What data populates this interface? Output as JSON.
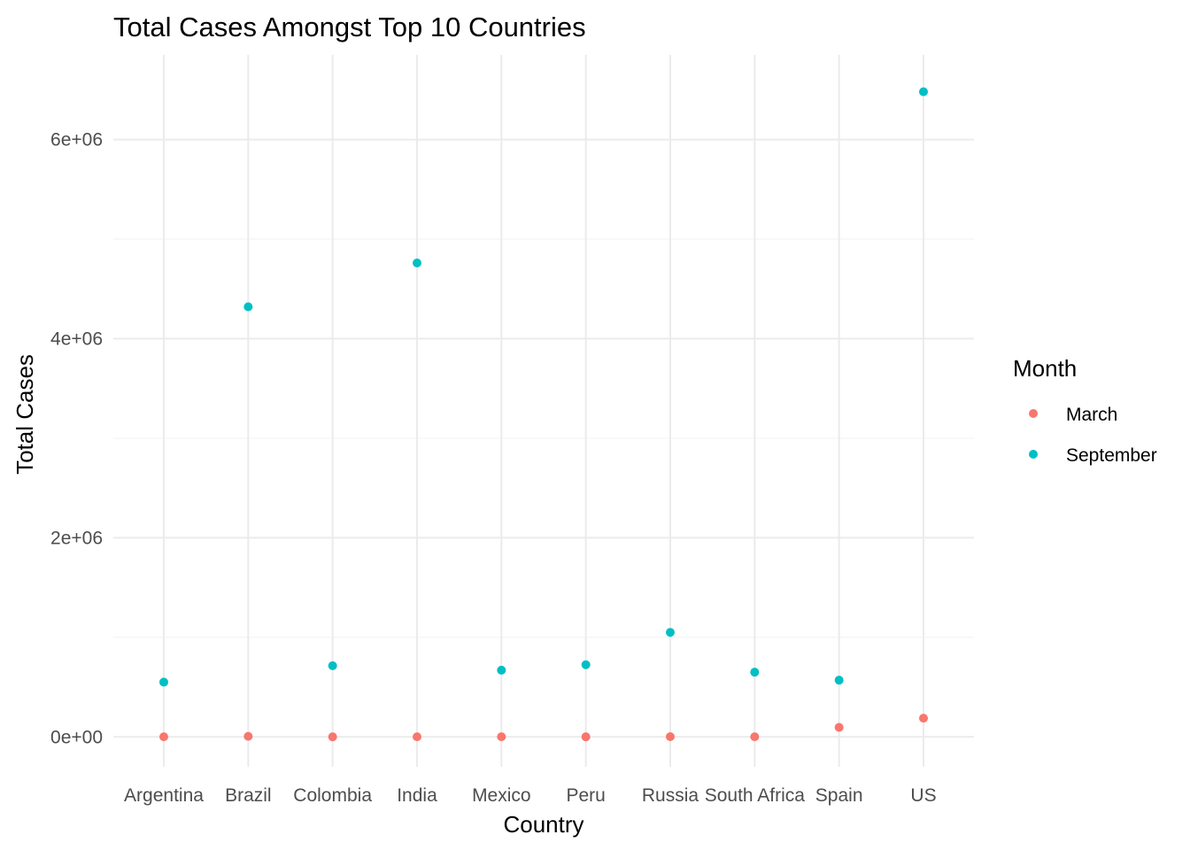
{
  "chart_data": {
    "type": "scatter",
    "title": "Total Cases Amongst Top 10 Countries",
    "xlabel": "Country",
    "ylabel": "Total Cases",
    "categories": [
      "Argentina",
      "Brazil",
      "Colombia",
      "India",
      "Mexico",
      "Peru",
      "Russia",
      "South Africa",
      "Spain",
      "US"
    ],
    "ylim": [
      -300000,
      6850000
    ],
    "yticks": [
      0,
      2000000,
      4000000,
      6000000
    ],
    "ytick_labels": [
      "0e+00",
      "2e+06",
      "4e+06",
      "6e+06"
    ],
    "grid": true,
    "legend": {
      "title": "Month",
      "placement": "right"
    },
    "series": [
      {
        "name": "March",
        "color": "#F8766D",
        "values": [
          1054,
          5717,
          906,
          1397,
          1215,
          950,
          2337,
          1353,
          95923,
          188172
        ]
      },
      {
        "name": "September",
        "color": "#00BFC4",
        "values": [
          550000,
          4320000,
          715000,
          4760000,
          670000,
          725000,
          1050000,
          650000,
          570000,
          6480000
        ]
      }
    ]
  }
}
